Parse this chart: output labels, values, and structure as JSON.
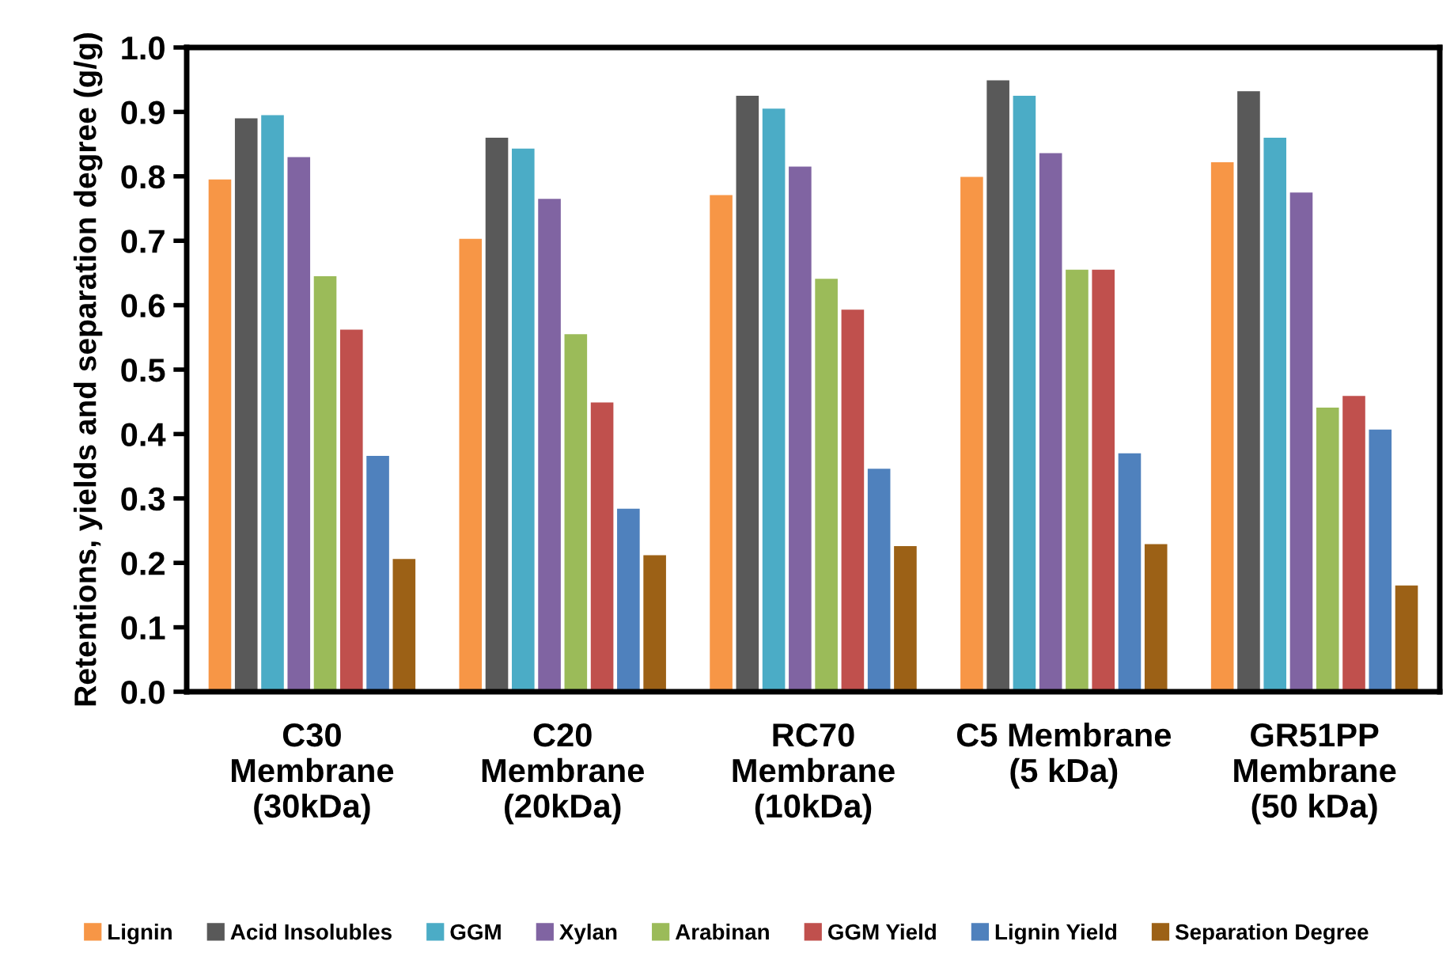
{
  "chart_data": {
    "type": "bar",
    "ylabel": "Retentions, yields and separation degree (g/g)",
    "categories": [
      "C30\nMembrane\n(30kDa)",
      "C20\nMembrane\n(20kDa)",
      "RC70\nMembrane\n(10kDa)",
      "C5 Membrane\n(5 kDa)",
      "GR51PP\nMembrane\n(50 kDa)"
    ],
    "series": [
      {
        "name": "Lignin",
        "color": "#f79646",
        "values": [
          0.795,
          0.703,
          0.771,
          0.799,
          0.822
        ]
      },
      {
        "name": "Acid Insolubles",
        "color": "#595959",
        "values": [
          0.89,
          0.86,
          0.925,
          0.949,
          0.932
        ]
      },
      {
        "name": "GGM",
        "color": "#4bacc6",
        "values": [
          0.895,
          0.843,
          0.905,
          0.925,
          0.86
        ]
      },
      {
        "name": "Xylan",
        "color": "#8064a2",
        "values": [
          0.83,
          0.765,
          0.815,
          0.836,
          0.775
        ]
      },
      {
        "name": "Arabinan",
        "color": "#9bbb59",
        "values": [
          0.645,
          0.555,
          0.641,
          0.655,
          0.441
        ]
      },
      {
        "name": "GGM Yield",
        "color": "#c0504d",
        "values": [
          0.562,
          0.449,
          0.593,
          0.655,
          0.459
        ]
      },
      {
        "name": "Lignin Yield",
        "color": "#4f81bd",
        "values": [
          0.366,
          0.284,
          0.346,
          0.37,
          0.407
        ]
      },
      {
        "name": "Separation Degree",
        "color": "#9c6116",
        "values": [
          0.206,
          0.212,
          0.226,
          0.229,
          0.165
        ]
      }
    ],
    "ylim": [
      0,
      1.0
    ],
    "yticks": [
      {
        "value": 0,
        "label": "0.0"
      },
      0.1,
      0.2,
      0.3,
      0.4,
      0.5,
      0.6,
      0.7,
      0.8,
      0.9,
      {
        "value": 1,
        "label": "1.0"
      }
    ],
    "grid": false,
    "legend": "bottom"
  }
}
